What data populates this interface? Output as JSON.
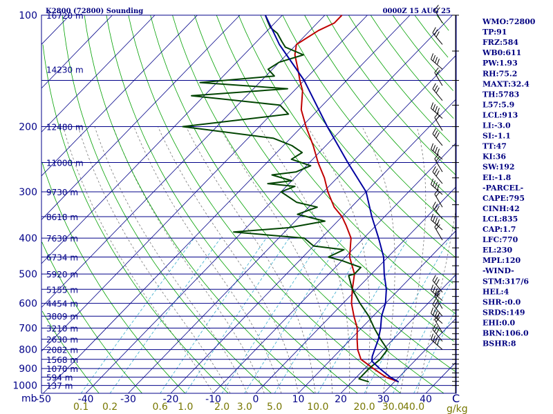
{
  "chart_data": {
    "type": "skew-t sounding",
    "title": "K2800 (72800) Sounding",
    "datetime": "0000Z 15 AUG 25",
    "pressure_levels": [
      100,
      200,
      300,
      400,
      500,
      600,
      700,
      800,
      900,
      1000
    ],
    "pressure_unit": "mb",
    "temperature_ticks": [
      "-50",
      "-40",
      "-30",
      "-20",
      "-10",
      "0",
      "10",
      "20",
      "30",
      "40"
    ],
    "temperature_unit": "C",
    "mixing_ratio_labels": [
      "0.1",
      "0.2",
      "0.6",
      "1.0",
      "2.0",
      "3.0",
      "5.0",
      "10.0",
      "20.0",
      "30.0",
      "40.0"
    ],
    "mixing_ratio_unit": "g/kg",
    "height_labels": [
      {
        "p": 100,
        "text": "16720 m"
      },
      {
        "p": 140,
        "text": "14230 m"
      },
      {
        "p": 200,
        "text": "12480 m"
      },
      {
        "p": 250,
        "text": "11000 m"
      },
      {
        "p": 300,
        "text": "9730 m"
      },
      {
        "p": 350,
        "text": "8618 m"
      },
      {
        "p": 400,
        "text": "7630 m"
      },
      {
        "p": 450,
        "text": "6734 m"
      },
      {
        "p": 500,
        "text": "5920 m"
      },
      {
        "p": 550,
        "text": "5155 m"
      },
      {
        "p": 600,
        "text": "4454 m"
      },
      {
        "p": 650,
        "text": "3809 m"
      },
      {
        "p": 700,
        "text": "3210 m"
      },
      {
        "p": 750,
        "text": "2630 m"
      },
      {
        "p": 800,
        "text": "2082 m"
      },
      {
        "p": 850,
        "text": "1568 m"
      },
      {
        "p": 900,
        "text": "1070 m"
      },
      {
        "p": 950,
        "text": "594 m"
      },
      {
        "p": 1000,
        "text": "137 m"
      }
    ],
    "series": [
      {
        "key": "temperature",
        "color": "#c00000",
        "points": [
          {
            "p": 978,
            "t": 31
          },
          {
            "p": 950,
            "t": 27
          },
          {
            "p": 900,
            "t": 22
          },
          {
            "p": 850,
            "t": 17
          },
          {
            "p": 800,
            "t": 14
          },
          {
            "p": 750,
            "t": 11.5
          },
          {
            "p": 700,
            "t": 9
          },
          {
            "p": 650,
            "t": 5.5
          },
          {
            "p": 600,
            "t": 2
          },
          {
            "p": 550,
            "t": -1
          },
          {
            "p": 500,
            "t": -4
          },
          {
            "p": 450,
            "t": -9
          },
          {
            "p": 400,
            "t": -13
          },
          {
            "p": 370,
            "t": -17
          },
          {
            "p": 350,
            "t": -20
          },
          {
            "p": 330,
            "t": -24
          },
          {
            "p": 300,
            "t": -29
          },
          {
            "p": 275,
            "t": -33
          },
          {
            "p": 250,
            "t": -38
          },
          {
            "p": 225,
            "t": -43
          },
          {
            "p": 200,
            "t": -49
          },
          {
            "p": 180,
            "t": -54
          },
          {
            "p": 160,
            "t": -58
          },
          {
            "p": 150,
            "t": -61
          },
          {
            "p": 140,
            "t": -64
          },
          {
            "p": 128,
            "t": -68
          },
          {
            "p": 120,
            "t": -70
          },
          {
            "p": 110,
            "t": -68
          },
          {
            "p": 105,
            "t": -66
          },
          {
            "p": 100,
            "t": -66
          }
        ]
      },
      {
        "key": "dewpoint",
        "color": "#004400",
        "points": [
          {
            "p": 978,
            "t": 24
          },
          {
            "p": 960,
            "t": 21
          },
          {
            "p": 950,
            "t": 21
          },
          {
            "p": 900,
            "t": 21
          },
          {
            "p": 850,
            "t": 21.5
          },
          {
            "p": 800,
            "t": 21
          },
          {
            "p": 750,
            "t": 17
          },
          {
            "p": 700,
            "t": 13
          },
          {
            "p": 650,
            "t": 9
          },
          {
            "p": 600,
            "t": 4
          },
          {
            "p": 550,
            "t": -1
          },
          {
            "p": 505,
            "t": -5
          },
          {
            "p": 500,
            "t": -4
          },
          {
            "p": 480,
            "t": -4
          },
          {
            "p": 460,
            "t": -10
          },
          {
            "p": 450,
            "t": -14
          },
          {
            "p": 430,
            "t": -12
          },
          {
            "p": 420,
            "t": -20
          },
          {
            "p": 400,
            "t": -24
          },
          {
            "p": 385,
            "t": -42
          },
          {
            "p": 375,
            "t": -30
          },
          {
            "p": 360,
            "t": -23
          },
          {
            "p": 345,
            "t": -31
          },
          {
            "p": 330,
            "t": -28
          },
          {
            "p": 320,
            "t": -34
          },
          {
            "p": 300,
            "t": -40
          },
          {
            "p": 290,
            "t": -38
          },
          {
            "p": 285,
            "t": -45
          },
          {
            "p": 280,
            "t": -40
          },
          {
            "p": 270,
            "t": -46
          },
          {
            "p": 265,
            "t": -41
          },
          {
            "p": 255,
            "t": -39
          },
          {
            "p": 245,
            "t": -45
          },
          {
            "p": 235,
            "t": -44
          },
          {
            "p": 225,
            "t": -48
          },
          {
            "p": 215,
            "t": -54
          },
          {
            "p": 200,
            "t": -78
          },
          {
            "p": 185,
            "t": -56
          },
          {
            "p": 175,
            "t": -60
          },
          {
            "p": 165,
            "t": -83
          },
          {
            "p": 158,
            "t": -62
          },
          {
            "p": 152,
            "t": -84
          },
          {
            "p": 146,
            "t": -68
          },
          {
            "p": 140,
            "t": -71
          },
          {
            "p": 134,
            "t": -70
          },
          {
            "p": 128,
            "t": -66
          },
          {
            "p": 122,
            "t": -72
          },
          {
            "p": 118,
            "t": -74
          },
          {
            "p": 112,
            "t": -77
          },
          {
            "p": 108,
            "t": -80
          },
          {
            "p": 104,
            "t": -82
          },
          {
            "p": 100,
            "t": -84
          }
        ]
      },
      {
        "key": "parcel",
        "color": "#0000a0",
        "points": [
          {
            "p": 978,
            "t": 31
          },
          {
            "p": 950,
            "t": 28
          },
          {
            "p": 900,
            "t": 23.5
          },
          {
            "p": 860,
            "t": 20
          },
          {
            "p": 835,
            "t": 19
          },
          {
            "p": 800,
            "t": 18
          },
          {
            "p": 750,
            "t": 16.5
          },
          {
            "p": 700,
            "t": 14.5
          },
          {
            "p": 650,
            "t": 12
          },
          {
            "p": 600,
            "t": 10
          },
          {
            "p": 550,
            "t": 7
          },
          {
            "p": 500,
            "t": 3
          },
          {
            "p": 450,
            "t": -1
          },
          {
            "p": 400,
            "t": -6.5
          },
          {
            "p": 350,
            "t": -13
          },
          {
            "p": 300,
            "t": -20
          },
          {
            "p": 250,
            "t": -31
          },
          {
            "p": 200,
            "t": -44
          },
          {
            "p": 150,
            "t": -60
          },
          {
            "p": 120,
            "t": -74
          },
          {
            "p": 100,
            "t": -84
          }
        ]
      }
    ]
  },
  "indices": [
    "WMO:72800",
    "TP:91",
    "FRZ:584",
    "WB0:611",
    "PW:1.93",
    "RH:75.2",
    "MAXT:32.4",
    "TH:5783",
    "L57:5.9",
    "LCL:913",
    "LI:-3.0",
    "SI:-1.1",
    "TT:47",
    "KI:36",
    "SW:192",
    "EI:-1.8",
    "-PARCEL-",
    "CAPE:795",
    "CINH:42",
    "LCL:835",
    "CAP:1.7",
    "LFC:770",
    "EL:230",
    "MPL:120",
    "-WIND-",
    "STM:317/6",
    "HEL:4",
    "SHR-:0.0",
    "SRDS:149",
    "EHI:0.0",
    "BRN:106.0",
    "BSHR:8"
  ],
  "colors": {
    "frame": "#000088",
    "isobar": "#000088",
    "isotherm": "#000088",
    "dry_adiabat": "#00a000",
    "moist_adiabat": "#777777",
    "mixing_ratio": "#33aacc",
    "mixing_label": "#777700",
    "indices": "#000080",
    "wind": "#000000"
  }
}
